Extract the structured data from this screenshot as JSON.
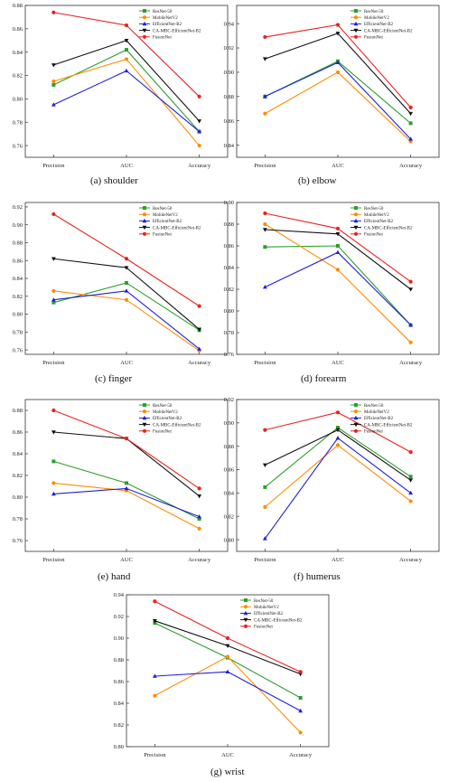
{
  "colors": {
    "ResNet-50": "#2ca02c",
    "MobileNetV2": "#ff8c00",
    "EfficientNet-B2": "#1f1fdd",
    "CA-MBC-EfficientNet-B2": "#111111",
    "FusionNet": "#e8231f"
  },
  "chart_data": [
    {
      "type": "line",
      "caption": "(a)  shoulder",
      "categories": [
        "Precision",
        "AUC",
        "Accuracy"
      ],
      "ylim": [
        0.75,
        0.88
      ],
      "yticks": [
        "0.76",
        "0.78",
        "0.80",
        "0.82",
        "0.84",
        "0.86",
        "0.88"
      ],
      "series": [
        {
          "name": "ResNet-50",
          "values": [
            0.812,
            0.842,
            0.772
          ]
        },
        {
          "name": "MobileNetV2",
          "values": [
            0.815,
            0.834,
            0.76
          ]
        },
        {
          "name": "EfficientNet-B2",
          "values": [
            0.795,
            0.824,
            0.772
          ]
        },
        {
          "name": "CA-MBC-EfficientNet-B2",
          "values": [
            0.829,
            0.85,
            0.781
          ]
        },
        {
          "name": "FusionNet",
          "values": [
            0.874,
            0.863,
            0.802
          ]
        }
      ]
    },
    {
      "type": "line",
      "caption": "(b)  elbow",
      "categories": [
        "Precision",
        "AUC",
        "Accuracy"
      ],
      "ylim": [
        0.83,
        0.955
      ],
      "yticks": [
        "0.84",
        "0.86",
        "0.88",
        "0.90",
        "0.92",
        "0.94"
      ],
      "series": [
        {
          "name": "ResNet-50",
          "values": [
            0.88,
            0.909,
            0.858
          ]
        },
        {
          "name": "MobileNetV2",
          "values": [
            0.866,
            0.9,
            0.843
          ]
        },
        {
          "name": "EfficientNet-B2",
          "values": [
            0.88,
            0.908,
            0.845
          ]
        },
        {
          "name": "CA-MBC-EfficientNet-B2",
          "values": [
            0.911,
            0.932,
            0.866
          ]
        },
        {
          "name": "FusionNet",
          "values": [
            0.929,
            0.939,
            0.871
          ]
        }
      ]
    },
    {
      "type": "line",
      "caption": "(c)  finger",
      "categories": [
        "Precision",
        "AUC",
        "Accuracy"
      ],
      "ylim": [
        0.755,
        0.925
      ],
      "yticks": [
        "0.76",
        "0.78",
        "0.80",
        "0.82",
        "0.84",
        "0.86",
        "0.88",
        "0.90",
        "0.92"
      ],
      "series": [
        {
          "name": "ResNet-50",
          "values": [
            0.813,
            0.835,
            0.782
          ]
        },
        {
          "name": "MobileNetV2",
          "values": [
            0.826,
            0.816,
            0.759
          ]
        },
        {
          "name": "EfficientNet-B2",
          "values": [
            0.816,
            0.826,
            0.761
          ]
        },
        {
          "name": "CA-MBC-EfficientNet-B2",
          "values": [
            0.862,
            0.852,
            0.783
          ]
        },
        {
          "name": "FusionNet",
          "values": [
            0.912,
            0.862,
            0.809
          ]
        }
      ]
    },
    {
      "type": "line",
      "caption": "(d)  forearm",
      "categories": [
        "Precision",
        "AUC",
        "Accuracy"
      ],
      "ylim": [
        0.76,
        0.9
      ],
      "yticks": [
        "0.76",
        "0.78",
        "0.80",
        "0.82",
        "0.84",
        "0.86",
        "0.88",
        "0.90"
      ],
      "series": [
        {
          "name": "ResNet-50",
          "values": [
            0.859,
            0.86,
            0.787
          ]
        },
        {
          "name": "MobileNetV2",
          "values": [
            0.88,
            0.838,
            0.771
          ]
        },
        {
          "name": "EfficientNet-B2",
          "values": [
            0.822,
            0.854,
            0.787
          ]
        },
        {
          "name": "CA-MBC-EfficientNet-B2",
          "values": [
            0.875,
            0.871,
            0.82
          ]
        },
        {
          "name": "FusionNet",
          "values": [
            0.89,
            0.876,
            0.827
          ]
        }
      ]
    },
    {
      "type": "line",
      "caption": "(e)  hand",
      "categories": [
        "Precision",
        "AUC",
        "Accuracy"
      ],
      "ylim": [
        0.75,
        0.89
      ],
      "yticks": [
        "0.76",
        "0.78",
        "0.80",
        "0.82",
        "0.84",
        "0.86",
        "0.88"
      ],
      "series": [
        {
          "name": "ResNet-50",
          "values": [
            0.833,
            0.813,
            0.78
          ]
        },
        {
          "name": "MobileNetV2",
          "values": [
            0.813,
            0.806,
            0.771
          ]
        },
        {
          "name": "EfficientNet-B2",
          "values": [
            0.803,
            0.808,
            0.782
          ]
        },
        {
          "name": "CA-MBC-EfficientNet-B2",
          "values": [
            0.86,
            0.854,
            0.801
          ]
        },
        {
          "name": "FusionNet",
          "values": [
            0.88,
            0.854,
            0.808
          ]
        }
      ]
    },
    {
      "type": "line",
      "caption": "(f)  humerus",
      "categories": [
        "Precision",
        "AUC",
        "Accuracy"
      ],
      "ylim": [
        0.79,
        0.92
      ],
      "yticks": [
        "0.80",
        "0.82",
        "0.84",
        "0.86",
        "0.88",
        "0.90",
        "0.92"
      ],
      "series": [
        {
          "name": "ResNet-50",
          "values": [
            0.845,
            0.896,
            0.854
          ]
        },
        {
          "name": "MobileNetV2",
          "values": [
            0.828,
            0.881,
            0.833
          ]
        },
        {
          "name": "EfficientNet-B2",
          "values": [
            0.801,
            0.887,
            0.84
          ]
        },
        {
          "name": "CA-MBC-EfficientNet-B2",
          "values": [
            0.864,
            0.894,
            0.851
          ]
        },
        {
          "name": "FusionNet",
          "values": [
            0.894,
            0.909,
            0.875
          ]
        }
      ]
    },
    {
      "type": "line",
      "caption": "(g)  wrist",
      "categories": [
        "Precision",
        "AUC",
        "Accuracy"
      ],
      "ylim": [
        0.8,
        0.94
      ],
      "yticks": [
        "0.80",
        "0.82",
        "0.84",
        "0.86",
        "0.88",
        "0.90",
        "0.92",
        "0.94"
      ],
      "series": [
        {
          "name": "ResNet-50",
          "values": [
            0.914,
            0.882,
            0.845
          ]
        },
        {
          "name": "MobileNetV2",
          "values": [
            0.847,
            0.883,
            0.813
          ]
        },
        {
          "name": "EfficientNet-B2",
          "values": [
            0.865,
            0.869,
            0.833
          ]
        },
        {
          "name": "CA-MBC-EfficientNet-B2",
          "values": [
            0.916,
            0.893,
            0.867
          ]
        },
        {
          "name": "FusionNet",
          "values": [
            0.934,
            0.9,
            0.869
          ]
        }
      ]
    }
  ]
}
